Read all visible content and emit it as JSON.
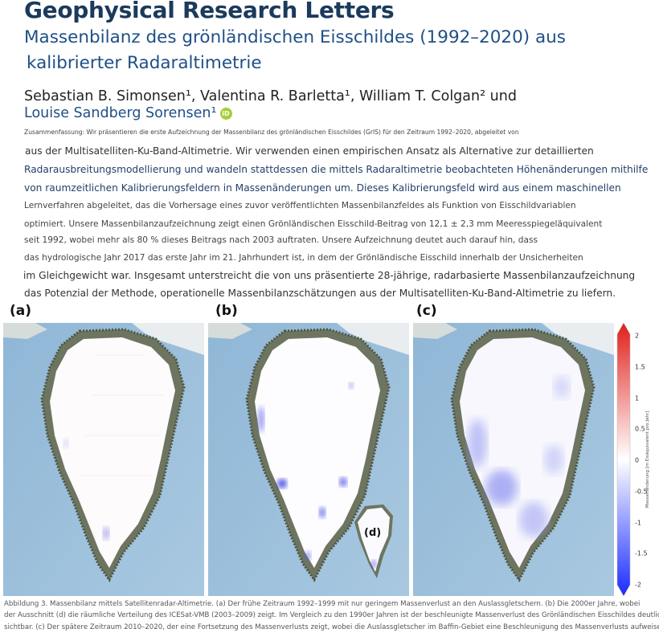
{
  "journal": "Geophysical Research Letters",
  "title_lines": [
    "Massenbilanz des grönländischen Eisschildes (1992–2020) aus",
    "kalibrierter Radaraltimetrie"
  ],
  "authors_line1": "Sebastian B. Simonsen¹, Valentina R. Barletta¹, William T. Colgan² und",
  "authors_line2": "Louise Sandberg Sorensen¹",
  "orcid_label": "iD",
  "abstract_lead": "Zusammenfassung: Wir präsentieren die erste Aufzeichnung der Massenbilanz des grönländischen Eisschildes (GrIS) für den Zeitraum 1992–2020, abgeleitet von",
  "abstract_lines": [
    "aus der Multisatelliten-Ku-Band-Altimetrie. Wir verwenden einen empirischen Ansatz als Alternative zur detaillierten",
    "Radarausbreitungsmodellierung und wandeln stattdessen die mittels Radaraltimetrie beobachteten Höhenänderungen mithilfe",
    "von raumzeitlichen Kalibrierungsfeldern in Massenänderungen um. Dieses Kalibrierungsfeld wird aus einem maschinellen",
    "Lernverfahren abgeleitet, das die Vorhersage eines zuvor veröffentlichten Massenbilanzfeldes als Funktion von Eisschildvariablen",
    "optimiert. Unsere Massenbilanzaufzeichnung zeigt einen Grönländischen Eisschild-Beitrag von 12,1 ± 2,3 mm Meeresspiegeläquivalent",
    "seit 1992, wobei mehr als 80 % dieses Beitrags nach 2003 auftraten. Unsere Aufzeichnung deutet auch darauf hin, dass",
    "das hydrologische Jahr 2017 das erste Jahr im 21. Jahrhundert ist, in dem der Grönländische Eisschild innerhalb der Unsicherheiten",
    "im Gleichgewicht war. Insgesamt unterstreicht die von uns präsentierte 28-jährige, radarbasierte Massenbilanzaufzeichnung",
    "das Potenzial der Methode, operationelle Massenbilanzschätzungen aus der Multisatelliten-Ku-Band-Altimetrie zu liefern."
  ],
  "panels": [
    {
      "label": "(a)"
    },
    {
      "label": "(b)",
      "inset_label": "(d)"
    },
    {
      "label": "(c)"
    }
  ],
  "colorbar": {
    "ticks": [
      "2",
      "1.5",
      "1",
      "0.5",
      "0",
      "-0.5",
      "-1",
      "-1.5",
      "-2"
    ],
    "label": "Massenänderung [m Eisäquivalent pro Jahr]",
    "max_color": "#e0201b",
    "mid_color": "#ffffff",
    "min_color": "#1a2bff"
  },
  "caption_lines": [
    "Abbildung 3. Massenbilanz mittels Satellitenradar-Altimetrie. (a) Der frühe Zeitraum 1992–1999 mit nur geringem Massenverlust an den Auslassgletschern. (b) Die 2000er Jahre, wobei",
    "der Ausschnitt (d) die räumliche Verteilung des ICESat-VMB (2003–2009) zeigt. Im Vergleich zu den 1990er Jahren ist der beschleunigte Massenverlust des Grönländischen Eisschildes deutlich",
    "sichtbar. (c) Der spätere Zeitraum 2010–2020, der eine Fortsetzung des Massenverlusts zeigt, wobei die Auslassgletscher im Baffin-Gebiet eine Beschleunigung des Massenverlusts aufweisen"
  ]
}
